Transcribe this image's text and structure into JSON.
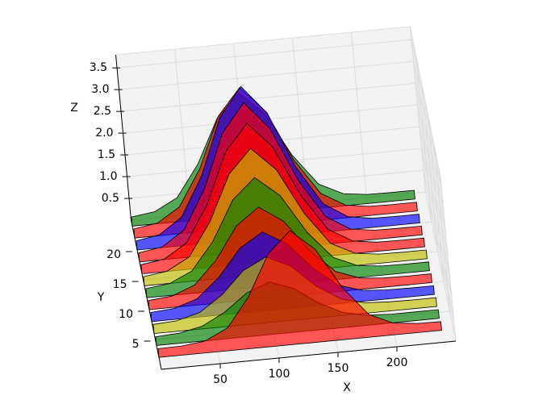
{
  "chart_data": {
    "type": "polygon3d",
    "xlabel": "X",
    "ylabel": "Y",
    "zlabel": "Z",
    "x": [
      0,
      20,
      40,
      60,
      80,
      100,
      120,
      140,
      160,
      180,
      200,
      220,
      240
    ],
    "series": [
      {
        "y": 2,
        "color": "#ff0000",
        "values": [
          0.2,
          0.21,
          0.27,
          0.52,
          1.18,
          2.12,
          2.6,
          2.12,
          1.18,
          0.52,
          0.27,
          0.21,
          0.2
        ]
      },
      {
        "y": 4,
        "color": "#008000",
        "values": [
          0.2,
          0.23,
          0.34,
          0.61,
          1.0,
          1.2,
          1.0,
          0.61,
          0.34,
          0.23,
          0.2,
          0.2,
          0.2
        ]
      },
      {
        "y": 6,
        "color": "#bfbf00",
        "values": [
          0.21,
          0.24,
          0.38,
          0.73,
          1.24,
          1.5,
          1.24,
          0.73,
          0.38,
          0.24,
          0.21,
          0.2,
          0.2
        ]
      },
      {
        "y": 8,
        "color": "#0000ff",
        "values": [
          0.21,
          0.25,
          0.42,
          0.86,
          1.48,
          1.8,
          1.48,
          0.86,
          0.42,
          0.25,
          0.21,
          0.2,
          0.2
        ]
      },
      {
        "y": 10,
        "color": "#ff0000",
        "values": [
          0.21,
          0.26,
          0.46,
          0.98,
          1.72,
          2.1,
          1.72,
          0.98,
          0.46,
          0.26,
          0.21,
          0.2,
          0.2
        ]
      },
      {
        "y": 12,
        "color": "#008000",
        "values": [
          0.21,
          0.27,
          0.51,
          1.14,
          2.04,
          2.5,
          2.04,
          1.14,
          0.51,
          0.27,
          0.21,
          0.2,
          0.2
        ]
      },
      {
        "y": 14,
        "color": "#bfbf00",
        "values": [
          0.21,
          0.28,
          0.56,
          1.31,
          2.36,
          2.9,
          2.36,
          1.31,
          0.56,
          0.28,
          0.21,
          0.2,
          0.2
        ]
      },
      {
        "y": 16,
        "color": "#ff0000",
        "values": [
          0.21,
          0.29,
          0.61,
          1.43,
          2.6,
          3.2,
          2.6,
          1.43,
          0.61,
          0.29,
          0.21,
          0.2,
          0.2
        ]
      },
      {
        "y": 18,
        "color": "#ff0000",
        "values": [
          0.21,
          0.29,
          0.63,
          1.51,
          2.76,
          3.4,
          2.76,
          1.51,
          0.63,
          0.29,
          0.21,
          0.2,
          0.2
        ]
      },
      {
        "y": 20,
        "color": "#0000ff",
        "values": [
          0.21,
          0.3,
          0.65,
          1.55,
          2.84,
          3.5,
          2.84,
          1.55,
          0.65,
          0.3,
          0.21,
          0.2,
          0.2
        ]
      },
      {
        "y": 22,
        "color": "#ff0000",
        "values": [
          0.21,
          0.29,
          0.61,
          1.43,
          2.6,
          3.2,
          2.6,
          1.43,
          0.61,
          0.29,
          0.21,
          0.2,
          0.2
        ]
      },
      {
        "y": 24,
        "color": "#008000",
        "values": [
          0.21,
          0.28,
          0.55,
          1.27,
          2.28,
          2.8,
          2.28,
          1.27,
          0.55,
          0.28,
          0.21,
          0.2,
          0.2
        ]
      }
    ],
    "xlim": [
      0,
      250
    ],
    "ylim": [
      0,
      25
    ],
    "zlim": [
      0,
      3.8
    ],
    "xticks": [
      50,
      100,
      150,
      200
    ],
    "yticks": [
      5,
      10,
      15,
      20
    ],
    "zticks": [
      0.5,
      {
        "value": 1,
        "label": "1.0"
      },
      1.5,
      {
        "value": 2,
        "label": "2.0"
      },
      2.5,
      {
        "value": 3,
        "label": "3.0"
      },
      3.5
    ],
    "grid": true,
    "alpha": 0.65
  }
}
